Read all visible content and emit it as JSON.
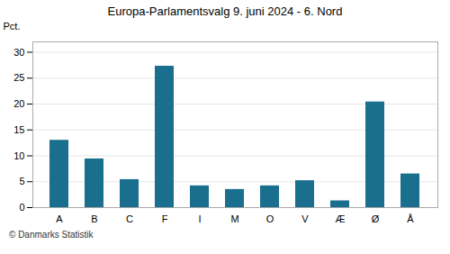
{
  "chart_data": {
    "type": "bar",
    "title": "Europa-Parlamentsvalg 9. juni 2024 - 6. Nord",
    "ylabel": "Pct.",
    "footer": "© Danmarks Statistik",
    "categories": [
      "A",
      "B",
      "C",
      "F",
      "I",
      "M",
      "O",
      "V",
      "Æ",
      "Ø",
      "Å"
    ],
    "values": [
      13.0,
      9.4,
      5.4,
      27.3,
      4.2,
      3.5,
      4.2,
      5.2,
      1.3,
      20.4,
      6.5
    ],
    "color": "#1a6e8e",
    "ylim": [
      0,
      32
    ],
    "yticks": [
      0,
      5,
      10,
      15,
      20,
      25,
      30
    ],
    "grid": true
  }
}
